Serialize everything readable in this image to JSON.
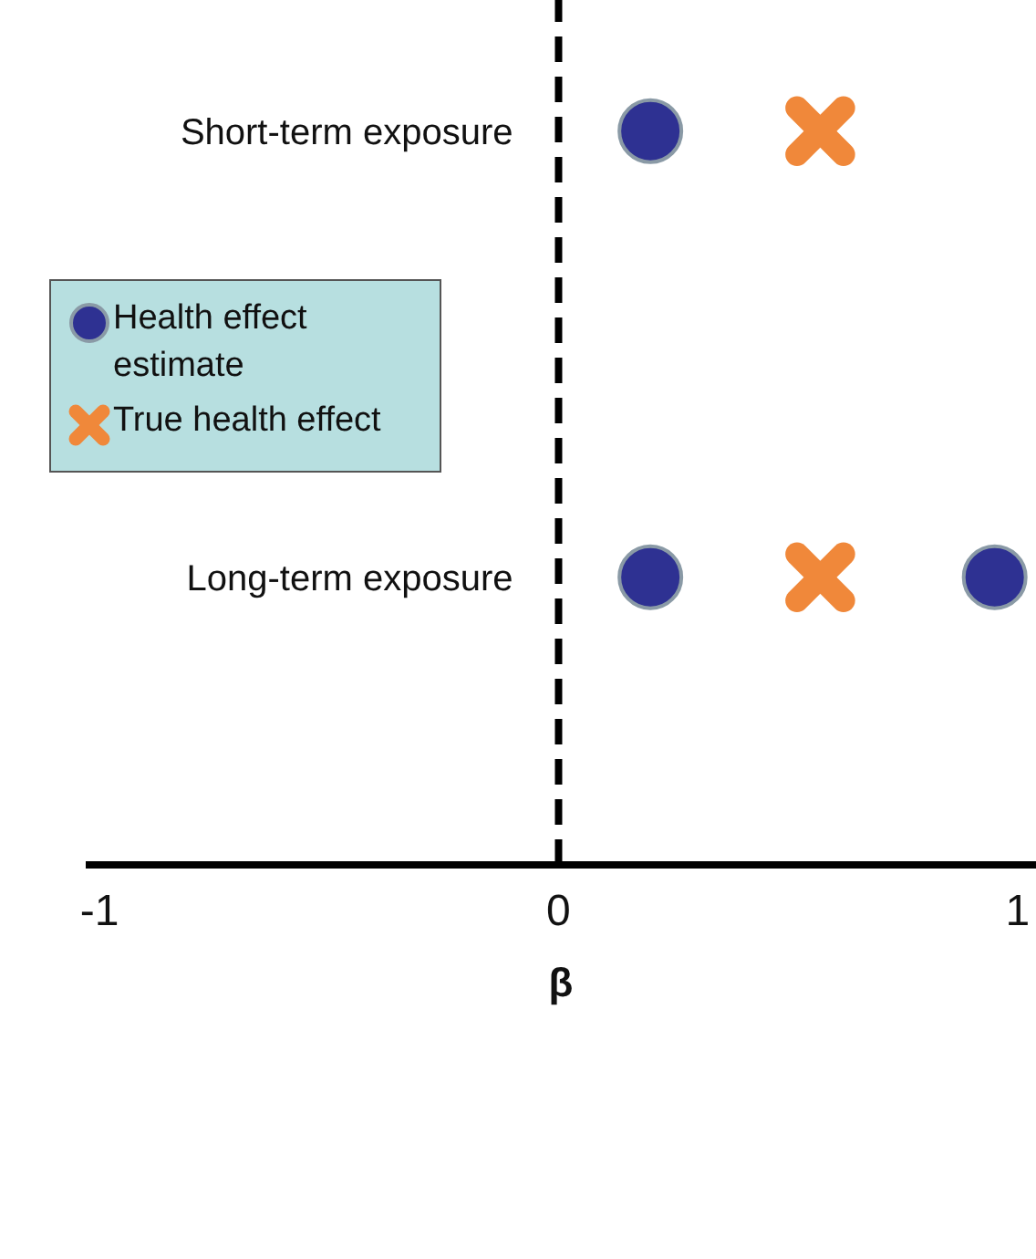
{
  "chart_data": {
    "type": "scatter",
    "orientation": "horizontal",
    "xlabel": "β",
    "categories": [
      "Short-term exposure",
      "Long-term exposure"
    ],
    "series": [
      {
        "name": "Health effect estimate",
        "color": "#2e3192",
        "marker": "circle",
        "x": [
          "Short-term exposure",
          "Long-term exposure",
          "Long-term exposure"
        ],
        "values": [
          0.2,
          0.2,
          0.95
        ]
      },
      {
        "name": "True health effect",
        "color": "#f0883a",
        "marker": "cross",
        "x": [
          "Short-term exposure",
          "Long-term exposure"
        ],
        "values": [
          0.57,
          0.57
        ]
      }
    ],
    "xlim": [
      -1.03,
      1.04
    ],
    "xticks": [
      {
        "value": -1,
        "label": "-1"
      },
      0,
      1
    ],
    "ref_lines": [
      {
        "axis": "x",
        "value": 0,
        "color": "#000000",
        "line_style": "dashed"
      }
    ],
    "legend": "left",
    "grid": false
  }
}
